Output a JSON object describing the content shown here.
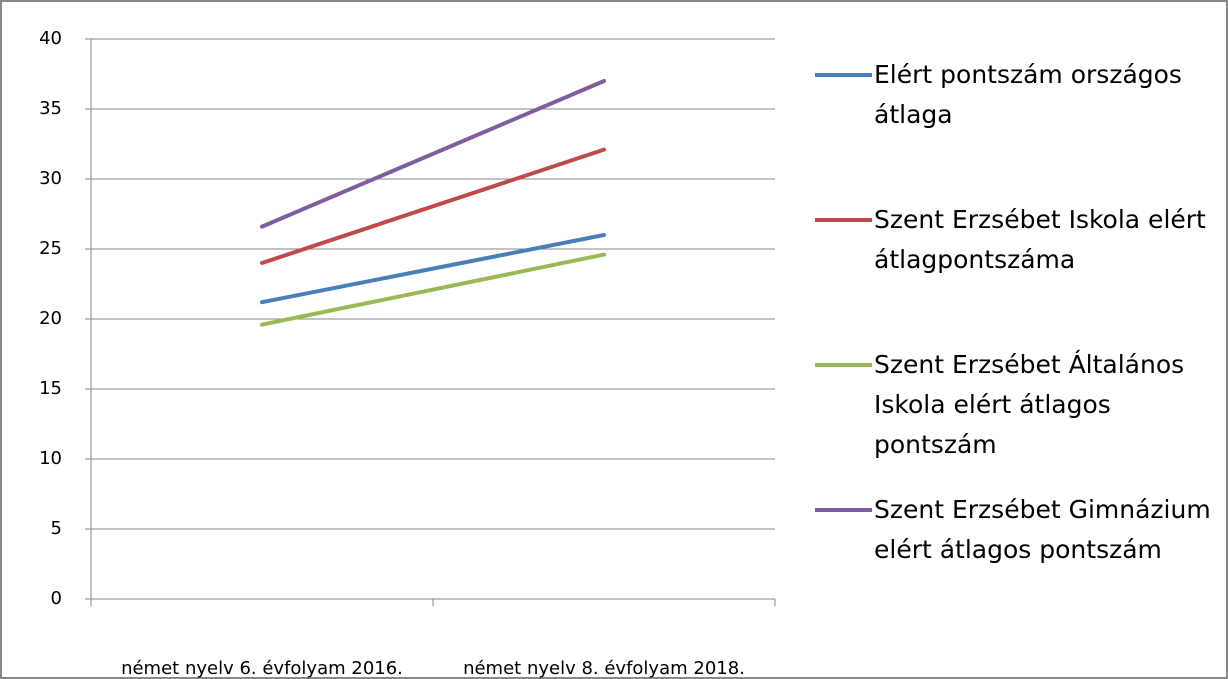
{
  "chart_data": {
    "type": "line",
    "categories": [
      "német nyelv 6. évfolyam 2016.",
      "német nyelv 8. évfolyam 2018."
    ],
    "series": [
      {
        "name": "Elért pontszám országos átlaga",
        "color": "#4a7ebb",
        "values": [
          21.2,
          26.0
        ]
      },
      {
        "name": "Szent Erzsébet Iskola elért átlagpontszáma",
        "color": "#be4b48",
        "values": [
          24.0,
          32.1
        ]
      },
      {
        "name": "Szent Erzsébet Általános Iskola elért átlagos pontszám",
        "color": "#98b954",
        "values": [
          19.6,
          24.6
        ]
      },
      {
        "name": "Szent Erzsébet Gimnázium elért átlagos pontszám",
        "color": "#7d5fa0",
        "values": [
          26.6,
          37.0
        ]
      }
    ],
    "ylim": [
      0,
      40
    ],
    "yticks": [
      0,
      5,
      10,
      15,
      20,
      25,
      30,
      35,
      40
    ],
    "grid": true,
    "legend": "right"
  }
}
